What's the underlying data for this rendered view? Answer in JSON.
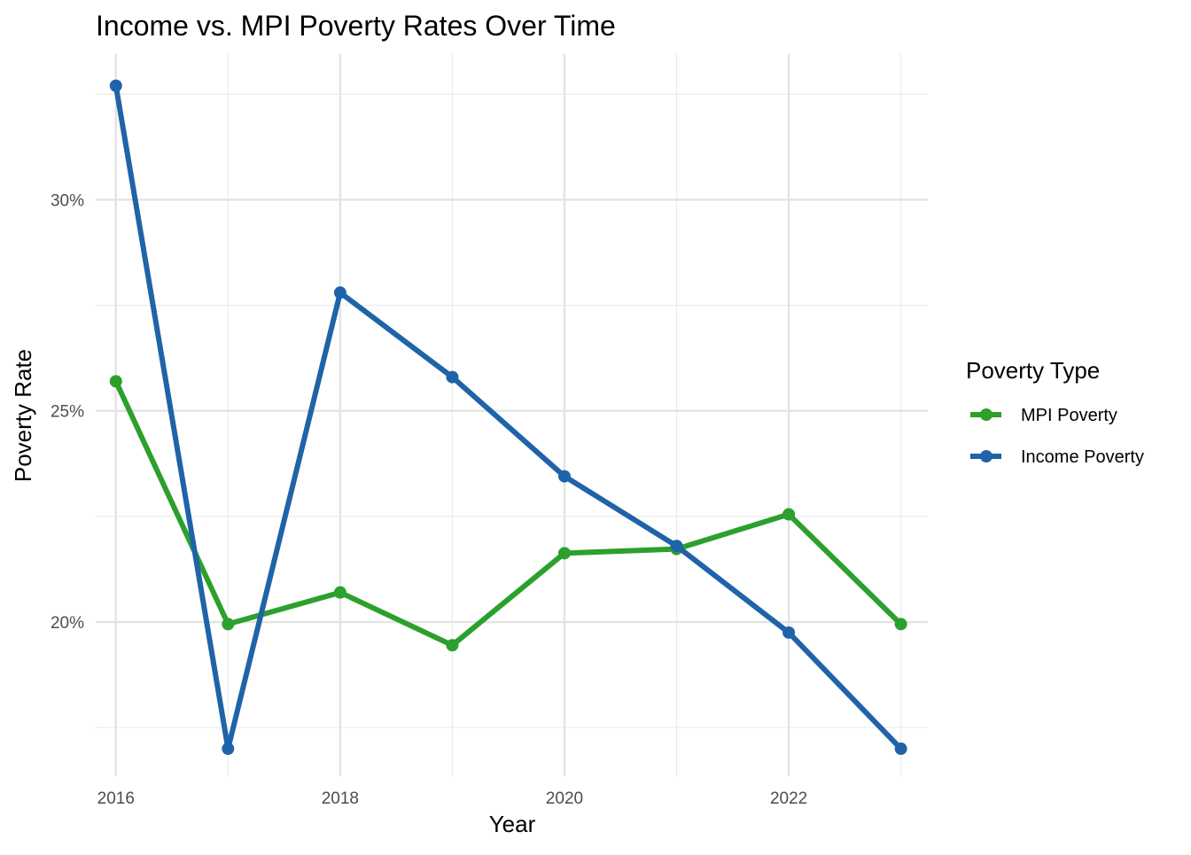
{
  "chart_data": {
    "type": "line",
    "title": "Income vs. MPI Poverty Rates Over Time",
    "xlabel": "Year",
    "ylabel": "Poverty Rate",
    "x": [
      2016,
      2017,
      2018,
      2019,
      2020,
      2021,
      2022,
      2023
    ],
    "x_ticks": [
      2016,
      2018,
      2020,
      2022
    ],
    "x_tick_labels": [
      "2016",
      "2018",
      "2020",
      "2022"
    ],
    "xlim": [
      2015.82,
      2023.24
    ],
    "y_ticks": [
      0.2,
      0.25,
      0.3
    ],
    "y_tick_labels": [
      "20%",
      "25%",
      "30%"
    ],
    "y_minor_ticks": [
      0.175,
      0.225,
      0.275,
      0.325
    ],
    "ylim": [
      0.1635,
      0.3345
    ],
    "grid": true,
    "legend": {
      "title": "Poverty Type",
      "position": "right"
    },
    "series": [
      {
        "name": "MPI Poverty",
        "color": "#2ca02c",
        "values": [
          0.257,
          0.1995,
          0.207,
          0.1945,
          0.2163,
          0.2173,
          0.2255,
          0.1995
        ]
      },
      {
        "name": "Income Poverty",
        "color": "#1f63a8",
        "values": [
          0.327,
          0.17,
          0.278,
          0.258,
          0.2345,
          0.218,
          0.1975,
          0.17
        ]
      }
    ]
  }
}
